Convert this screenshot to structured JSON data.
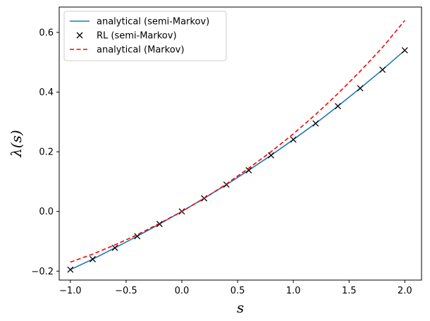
{
  "chart_data": {
    "type": "line",
    "xlabel": "s",
    "ylabel": "λ(s)",
    "xlim": [
      -1.1,
      2.15
    ],
    "ylim": [
      -0.23,
      0.685
    ],
    "grid": false,
    "legend_position": "top-left",
    "x_ticks": [
      -1.0,
      -0.5,
      0.0,
      0.5,
      1.0,
      1.5,
      2.0
    ],
    "x_tick_labels": [
      "−1.0",
      "−0.5",
      "0.0",
      "0.5",
      "1.0",
      "1.5",
      "2.0"
    ],
    "y_ticks": [
      -0.2,
      0.0,
      0.2,
      0.4,
      0.6
    ],
    "y_tick_labels": [
      "−0.2",
      "0.0",
      "0.2",
      "0.4",
      "0.6"
    ],
    "series": [
      {
        "name": "analytical (semi-Markov)",
        "style": "solid",
        "color": "#1f77b4",
        "x": [
          -1.0,
          -0.8,
          -0.6,
          -0.4,
          -0.2,
          0.0,
          0.2,
          0.4,
          0.6,
          0.8,
          1.0,
          1.2,
          1.4,
          1.6,
          1.8,
          2.0
        ],
        "y": [
          -0.195,
          -0.16,
          -0.122,
          -0.083,
          -0.042,
          0.0,
          0.044,
          0.09,
          0.138,
          0.188,
          0.241,
          0.295,
          0.353,
          0.413,
          0.475,
          0.54
        ]
      },
      {
        "name": "RL (semi-Markov)",
        "style": "marker-x",
        "color": "#000000",
        "x": [
          -1.0,
          -0.8,
          -0.6,
          -0.4,
          -0.2,
          0.0,
          0.2,
          0.4,
          0.6,
          0.8,
          1.0,
          1.2,
          1.4,
          1.6,
          1.8,
          2.0
        ],
        "y": [
          -0.195,
          -0.16,
          -0.122,
          -0.083,
          -0.042,
          0.0,
          0.044,
          0.09,
          0.138,
          0.188,
          0.241,
          0.295,
          0.353,
          0.413,
          0.475,
          0.54
        ]
      },
      {
        "name": "analytical (Markov)",
        "style": "dashed",
        "color": "#ff0000",
        "x": [
          -1.0,
          -0.8,
          -0.6,
          -0.4,
          -0.2,
          0.0,
          0.2,
          0.4,
          0.6,
          0.8,
          1.0,
          1.2,
          1.4,
          1.6,
          1.8,
          2.0
        ],
        "y": [
          -0.17,
          -0.143,
          -0.112,
          -0.078,
          -0.04,
          0.0,
          0.044,
          0.092,
          0.145,
          0.2,
          0.26,
          0.325,
          0.395,
          0.47,
          0.55,
          0.64
        ]
      }
    ]
  }
}
